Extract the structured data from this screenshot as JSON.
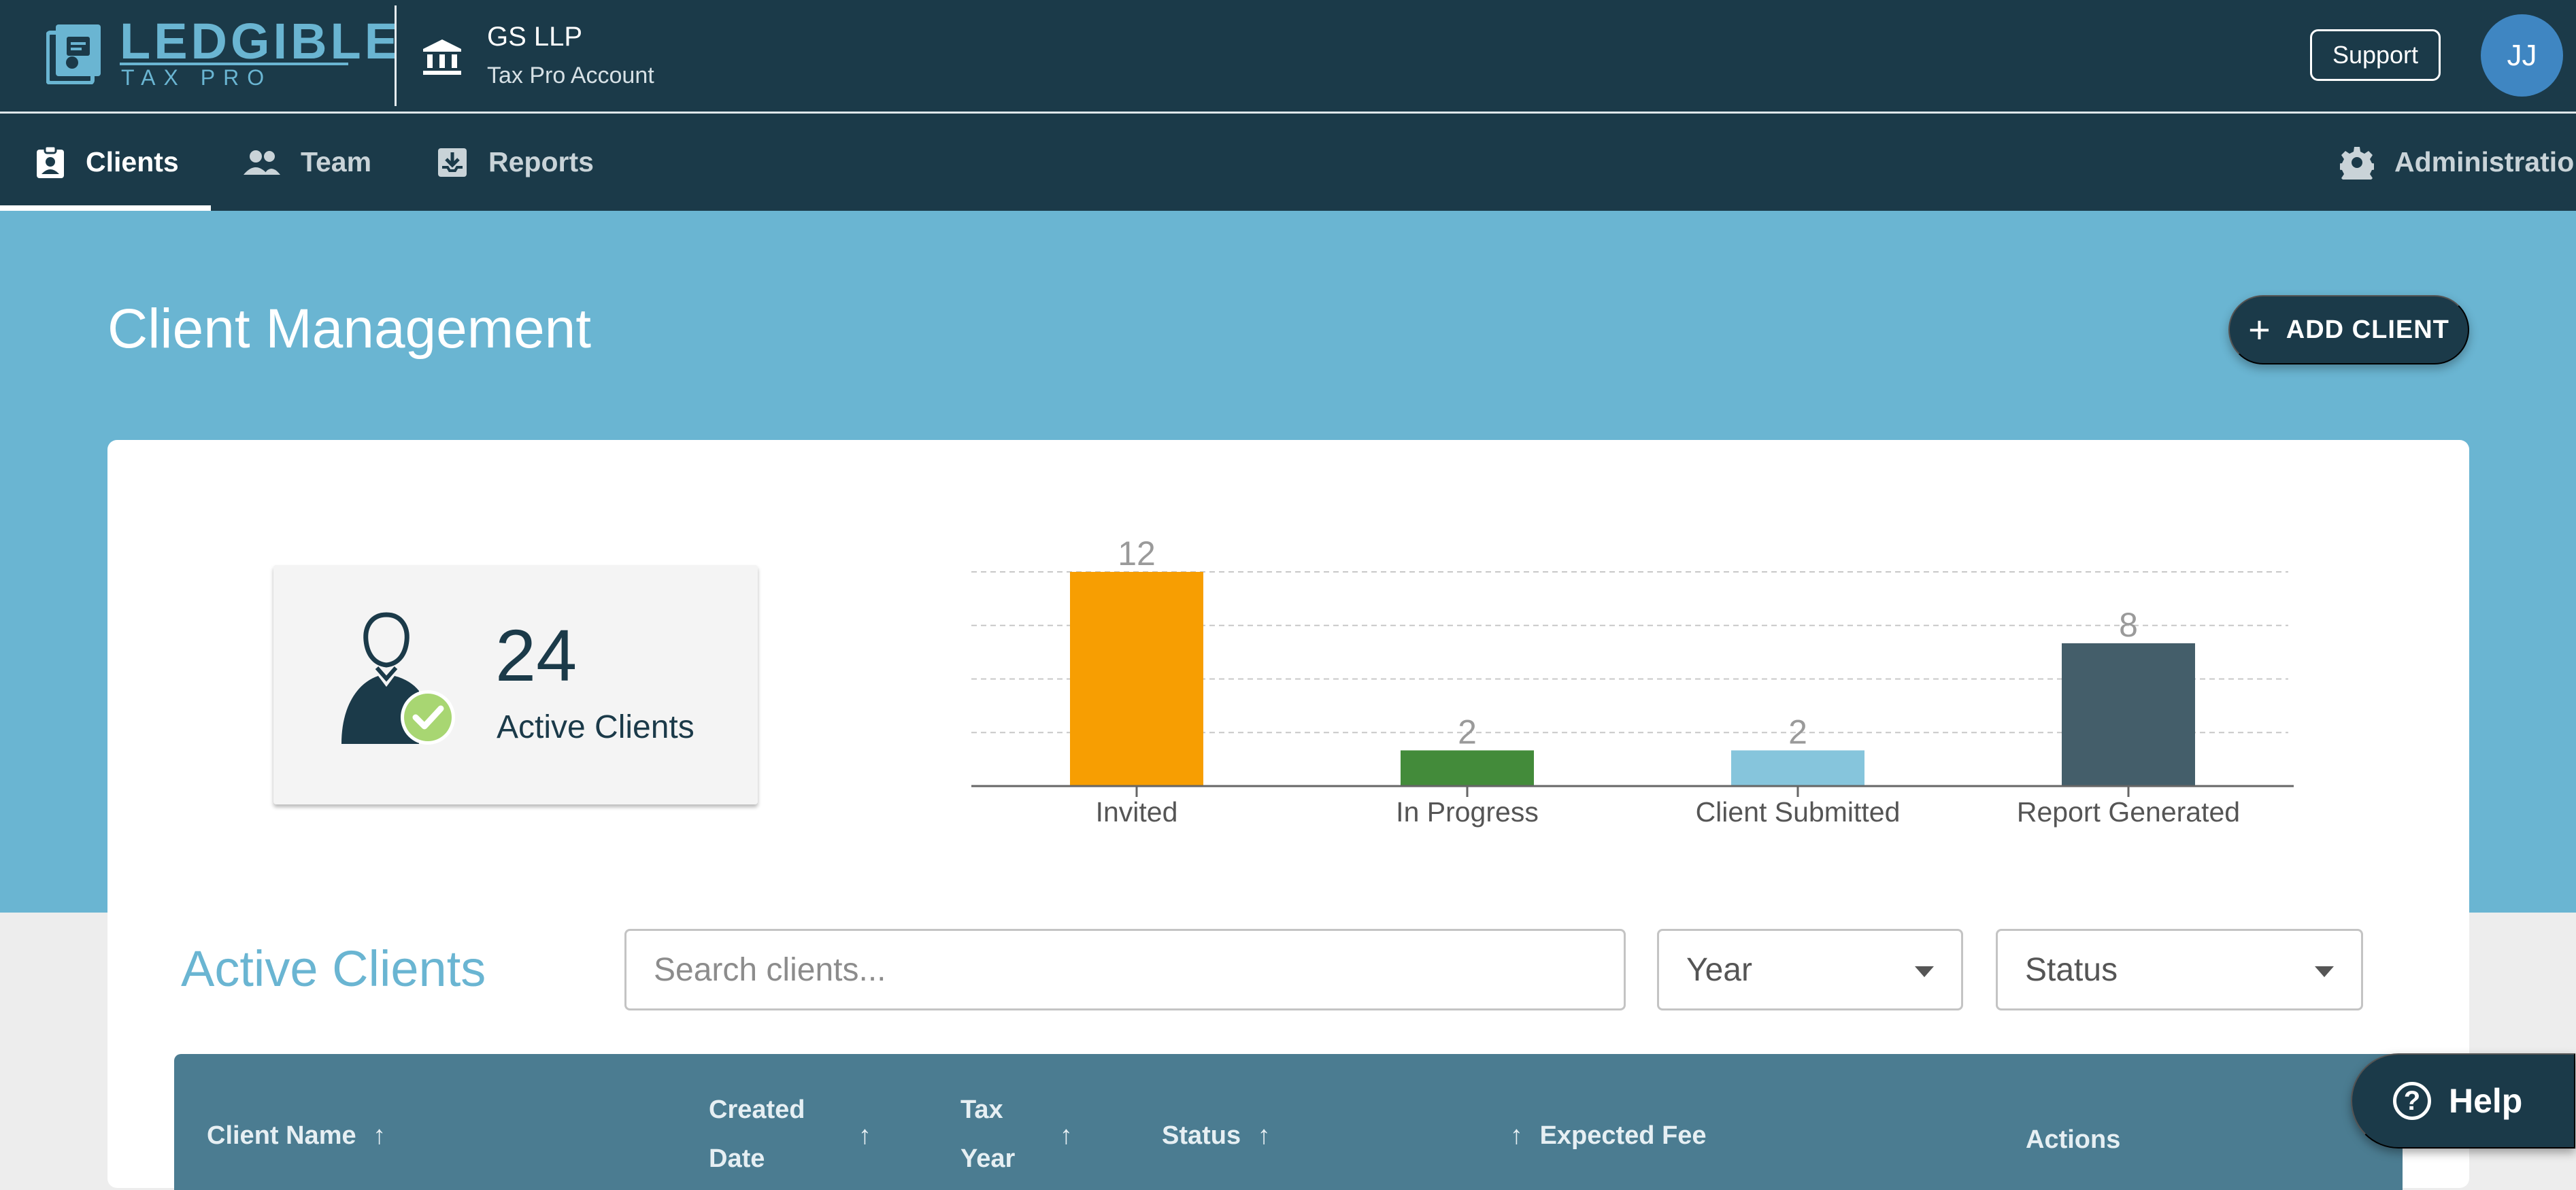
{
  "header": {
    "logo_title": "LEDGIBLE",
    "logo_subtitle": "TAX PRO",
    "org_name": "GS LLP",
    "org_account": "Tax Pro Account",
    "support_label": "Support",
    "avatar_initials": "JJ"
  },
  "nav": {
    "items": [
      {
        "label": "Clients",
        "icon": "clipboard-account-icon",
        "active": true
      },
      {
        "label": "Team",
        "icon": "people-icon",
        "active": false
      },
      {
        "label": "Reports",
        "icon": "download-tray-icon",
        "active": false
      },
      {
        "label": "Administration",
        "icon": "gear-icon",
        "active": false
      }
    ]
  },
  "main": {
    "title": "Client Management",
    "add_client_label": "ADD CLIENT"
  },
  "summary": {
    "active_count": "24",
    "active_label": "Active Clients"
  },
  "chart_data": {
    "type": "bar",
    "categories": [
      "Invited",
      "In Progress",
      "Client Submitted",
      "Report Generated"
    ],
    "values": [
      12,
      2,
      2,
      8
    ],
    "colors": [
      "#f79e02",
      "#438b3a",
      "#86c5dc",
      "#445e6a"
    ],
    "ylim": [
      0,
      12
    ],
    "grid": true
  },
  "clients_section": {
    "title": "Active Clients",
    "search_placeholder": "Search clients...",
    "year_filter": "Year",
    "status_filter": "Status"
  },
  "table": {
    "columns": {
      "client_name": "Client Name",
      "created_1": "Created",
      "created_2": "Date",
      "tax_year_1": "Tax",
      "tax_year_2": "Year",
      "status": "Status",
      "expected_fee": "Expected Fee",
      "actions": "Actions"
    },
    "sort_arrow": "↑"
  },
  "help": {
    "label": "Help"
  },
  "colors": {
    "navy": "#1b3a49",
    "hero_blue": "#6ab5d2",
    "table_header": "#4b7c91"
  }
}
